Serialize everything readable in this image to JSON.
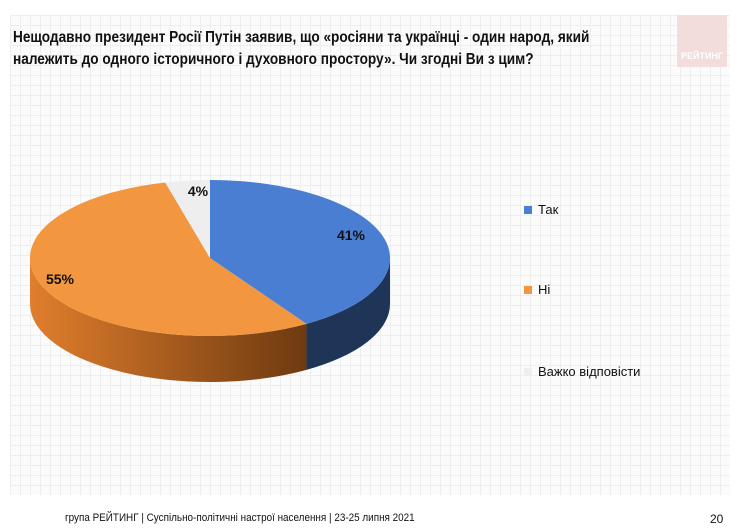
{
  "title": "Нещодавно президент Росії Путін заявив, що «росіяни та українці - один народ, який належить до одного історичного і духовного простору». Чи згодні Ви з цим?",
  "logo": "РЕЙТИНГ",
  "chart_data": {
    "type": "pie",
    "categories": [
      "Так",
      "Ні",
      "Важко відповісти"
    ],
    "values": [
      41,
      55,
      4
    ],
    "labels": [
      "41%",
      "55%",
      "4%"
    ],
    "colors": [
      "#4a7ed2",
      "#f2963f",
      "#eeeeee"
    ],
    "legend": "right"
  },
  "footer": "група РЕЙТИНГ | Суспільно-політичні настрої населення  | 23-25 липня 2021",
  "page_number": "20"
}
